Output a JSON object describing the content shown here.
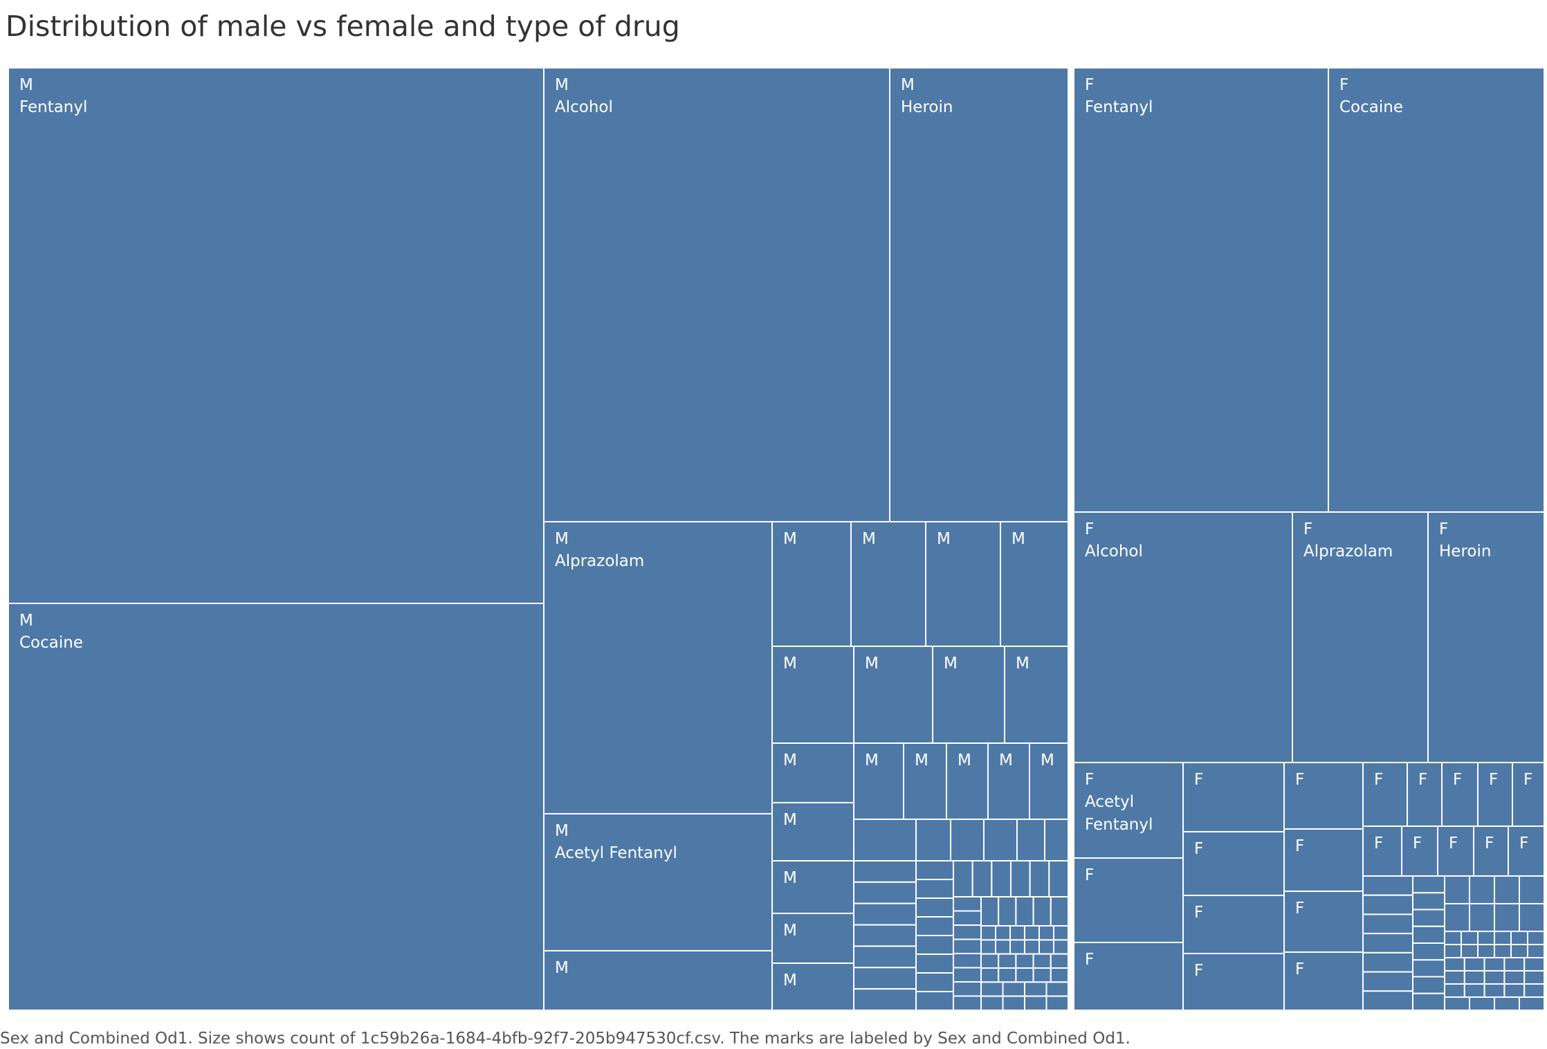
{
  "chart_data": {
    "type": "treemap",
    "title": "Distribution of male vs female and type of drug",
    "caption": "Sex and Combined Od1.  Size shows count of 1c59b26a-1684-4bfb-92f7-205b947530cf.csv.  The marks are labeled by Sex and Combined Od1.",
    "fill_color": "#4e79a7",
    "border_color": "#ffffff",
    "groups": [
      {
        "sex": "M",
        "labeled_items": [
          {
            "sex": "M",
            "drug": "Fentanyl"
          },
          {
            "sex": "M",
            "drug": "Cocaine"
          },
          {
            "sex": "M",
            "drug": "Alcohol"
          },
          {
            "sex": "M",
            "drug": "Heroin"
          },
          {
            "sex": "M",
            "drug": "Alprazolam"
          },
          {
            "sex": "M",
            "drug": "Acetyl Fentanyl"
          }
        ]
      },
      {
        "sex": "F",
        "labeled_items": [
          {
            "sex": "F",
            "drug": "Fentanyl"
          },
          {
            "sex": "F",
            "drug": "Cocaine"
          },
          {
            "sex": "F",
            "drug": "Alcohol"
          },
          {
            "sex": "F",
            "drug": "Alprazolam"
          },
          {
            "sex": "F",
            "drug": "Heroin"
          },
          {
            "sex": "F",
            "drug": "Acetyl Fentanyl"
          }
        ]
      }
    ]
  }
}
